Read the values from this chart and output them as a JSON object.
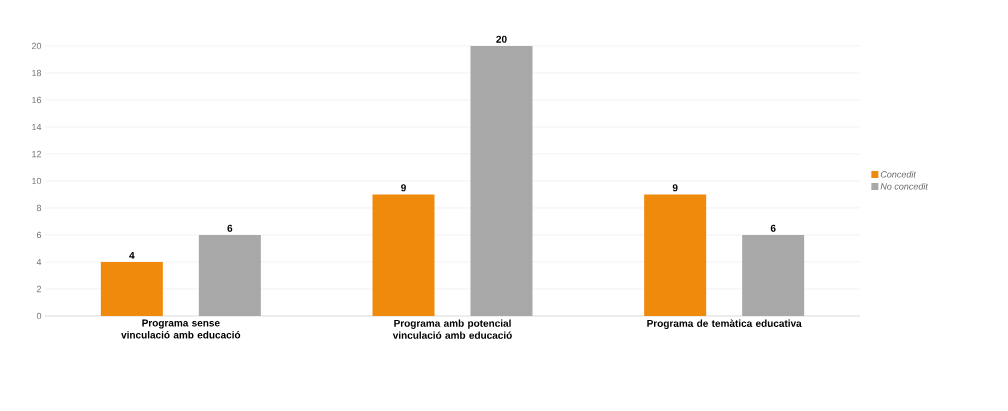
{
  "chart_data": {
    "type": "bar",
    "categories": [
      "Programa sense vinculació amb educació",
      "Programa amb potencial vinculació amb educació",
      "Programa de temàtica educativa"
    ],
    "series": [
      {
        "name": "Concedit",
        "color": "#f08a0c",
        "values": [
          4,
          9,
          9
        ]
      },
      {
        "name": "No concedit",
        "color": "#a8a8a8",
        "values": [
          6,
          20,
          6
        ]
      }
    ],
    "ylim": [
      0,
      20
    ],
    "yticks": [
      0,
      2,
      4,
      6,
      8,
      10,
      12,
      14,
      16,
      18,
      20
    ],
    "grid": "y",
    "legend": "right",
    "data_labels": true
  }
}
